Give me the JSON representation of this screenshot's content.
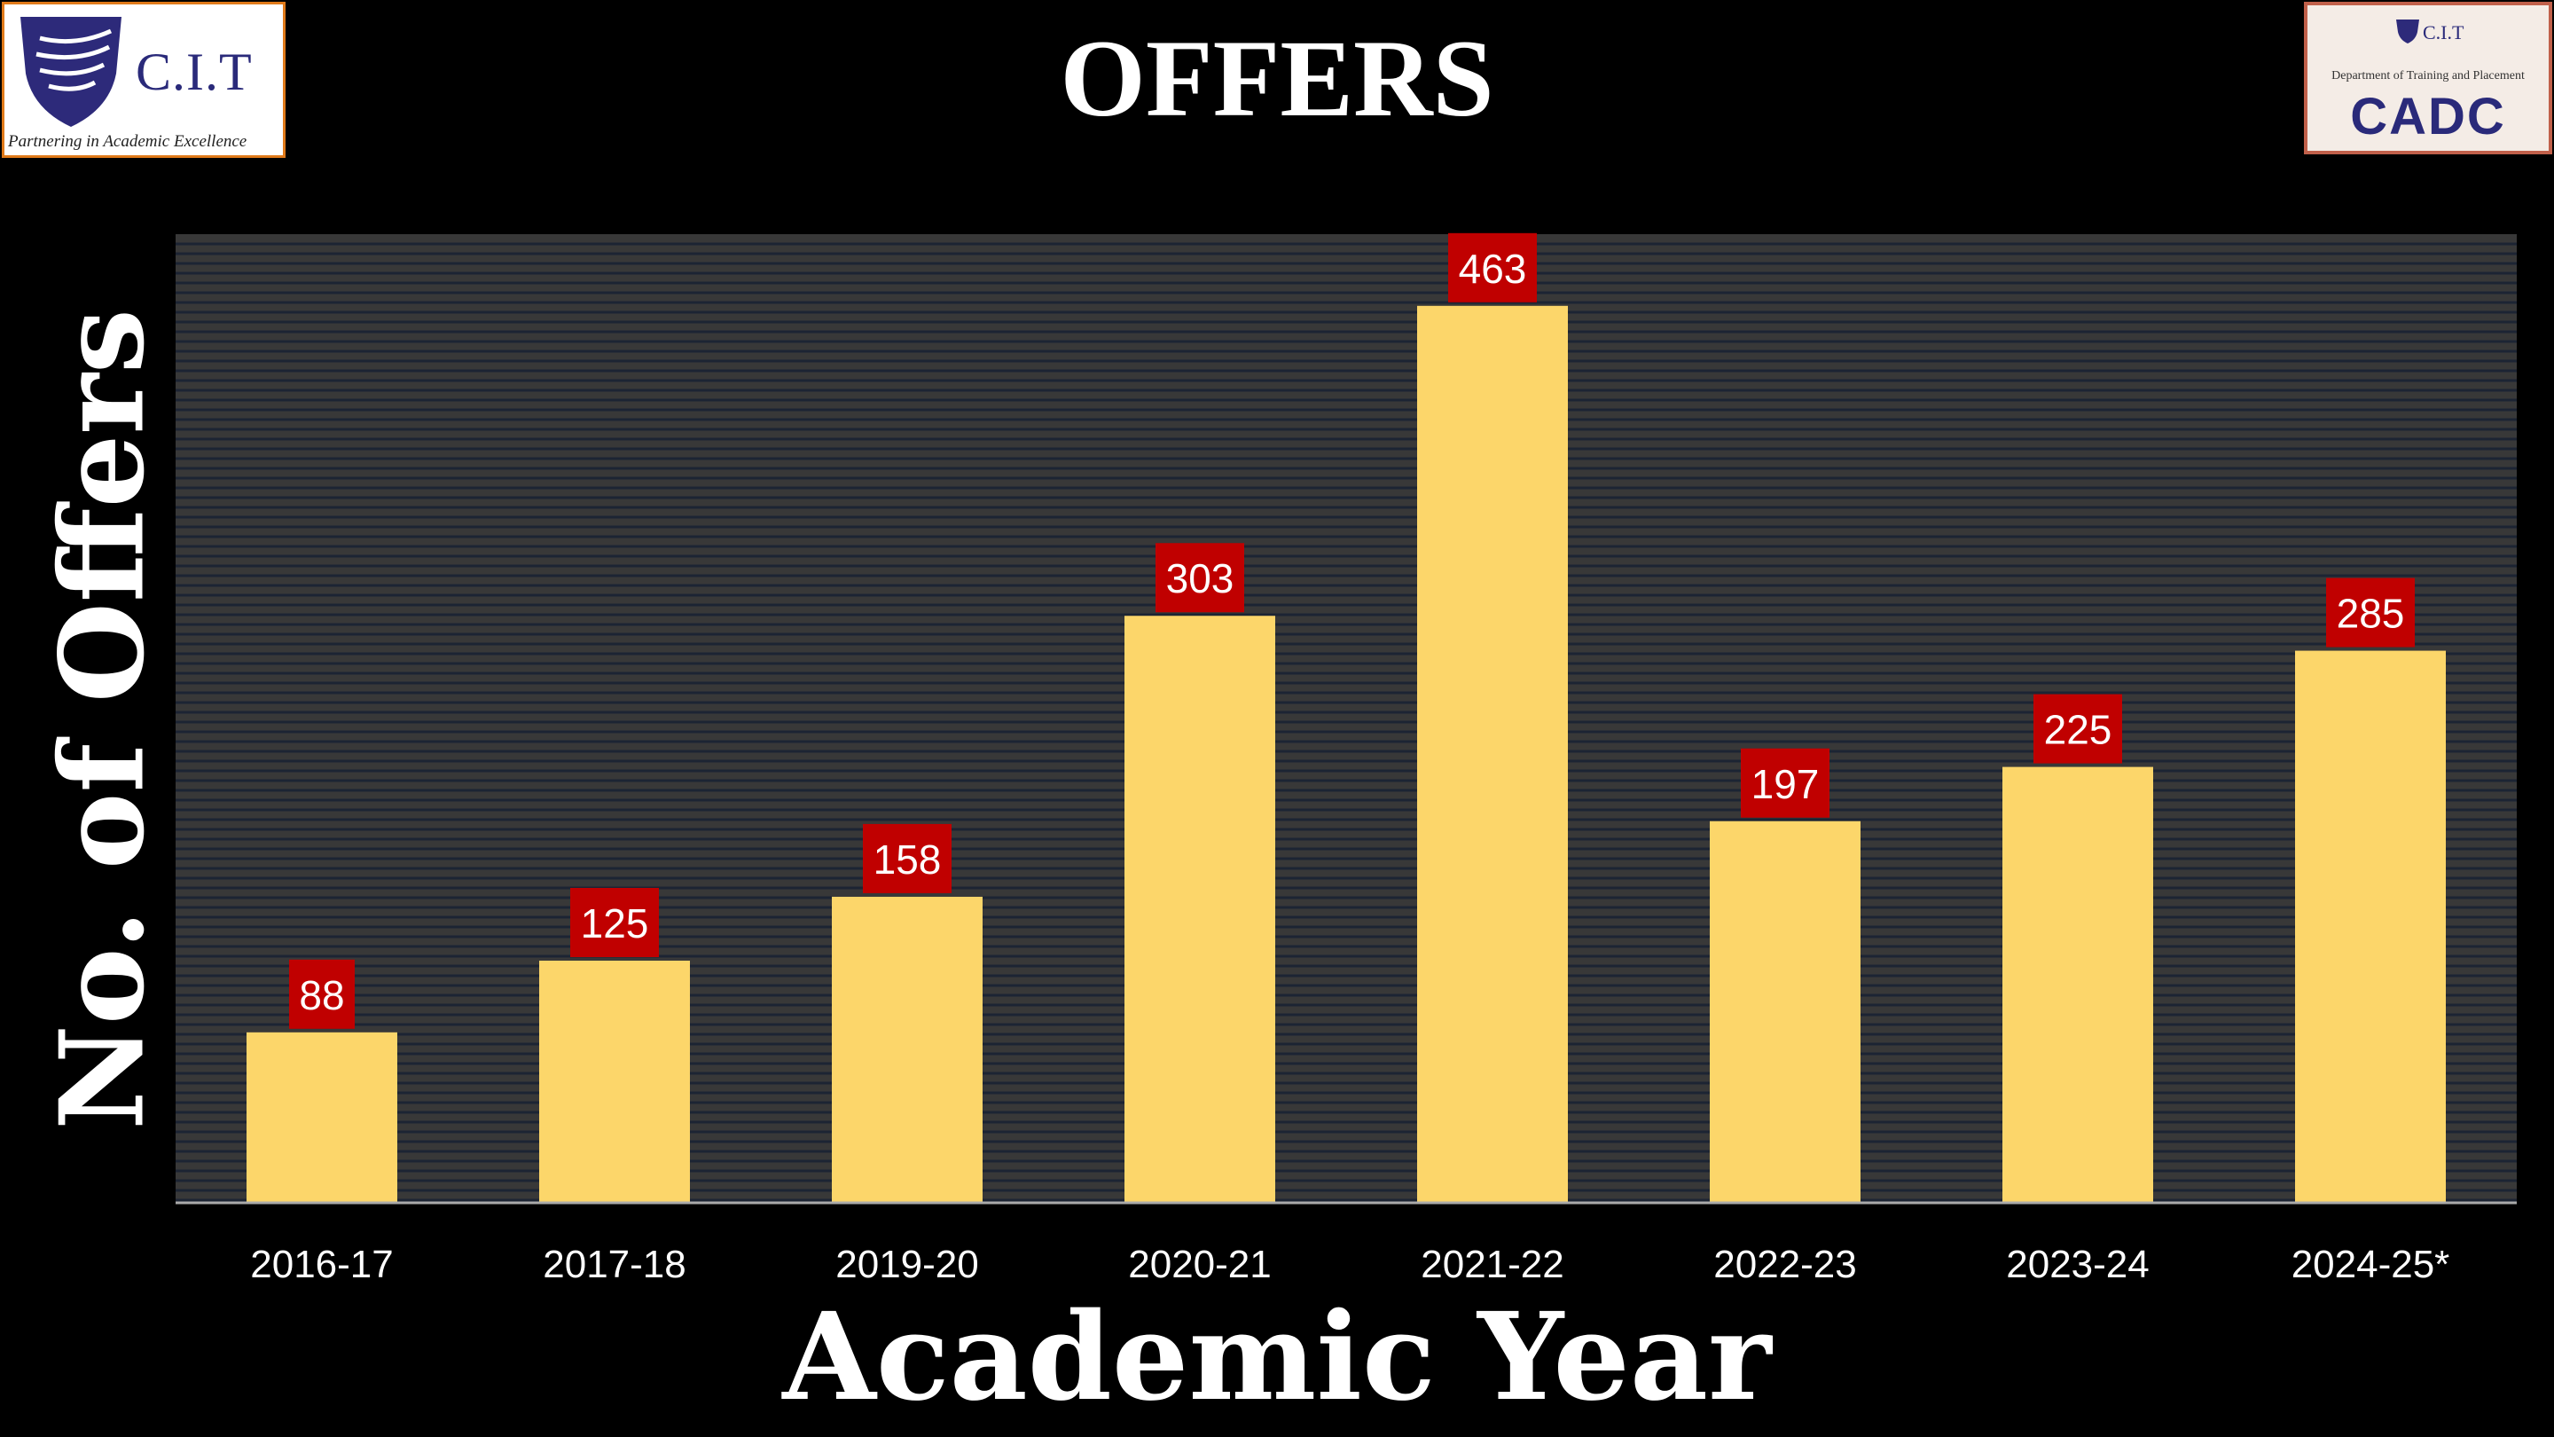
{
  "logos": {
    "left": {
      "name": "C.I.T",
      "tagline": "Partnering in Academic Excellence"
    },
    "right": {
      "name": "C.I.T",
      "department": "Department of Training and Placement",
      "brand": "CADC"
    }
  },
  "colors": {
    "bar": "#FCD66A",
    "label_bg": "#C00000",
    "plot_bg": "#383838",
    "grid": "#1c2433",
    "background": "#000000"
  },
  "chart_data": {
    "type": "bar",
    "title": "OFFERS",
    "xlabel": "Academic Year",
    "ylabel": "No. of Offers",
    "categories": [
      "2016-17",
      "2017-18",
      "2019-20",
      "2020-21",
      "2021-22",
      "2022-23",
      "2023-24",
      "2024-25*"
    ],
    "values": [
      88,
      125,
      158,
      303,
      463,
      197,
      225,
      285
    ],
    "ylim": [
      0,
      500
    ],
    "grid": true,
    "data_labels": true
  }
}
